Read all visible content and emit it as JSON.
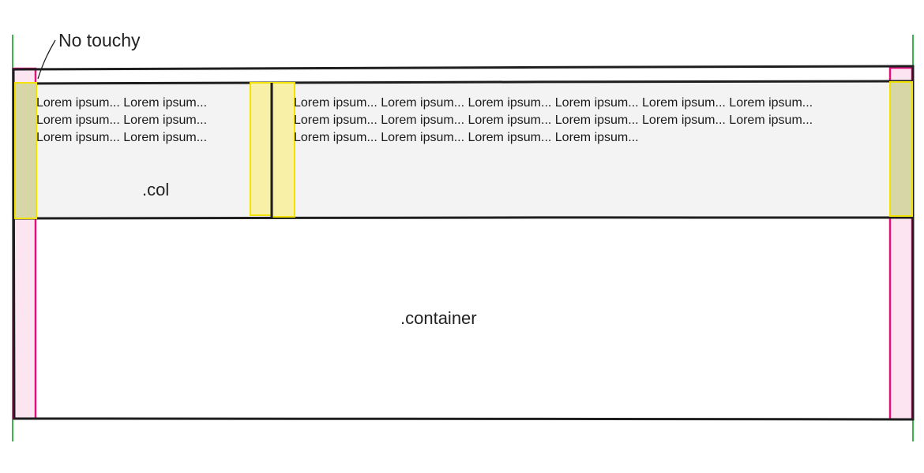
{
  "annotation": {
    "text": "No touchy"
  },
  "labels": {
    "col": ".col",
    "container": ".container"
  },
  "columns": {
    "left_text": "Lorem ipsum... Lorem ipsum...\nLorem ipsum... Lorem ipsum...\nLorem ipsum... Lorem ipsum...",
    "right_text": "Lorem ipsum... Lorem ipsum... Lorem ipsum... Lorem ipsum... Lorem ipsum... Lorem ipsum...\nLorem ipsum... Lorem ipsum... Lorem ipsum... Lorem ipsum... Lorem ipsum... Lorem ipsum...\nLorem ipsum... Lorem ipsum... Lorem ipsum... Lorem ipsum..."
  },
  "colors": {
    "container_stroke": "#1e1e1e",
    "container_padding_fill": "#fce4f0",
    "container_padding_stroke": "#e0117f",
    "row_fill": "#f3f3f3",
    "gutter_fill": "#f8f0a6",
    "gutter_stroke": "#f1e200",
    "overlap_fill": "#d6d6a6",
    "edge_line": "#3cb44b"
  }
}
